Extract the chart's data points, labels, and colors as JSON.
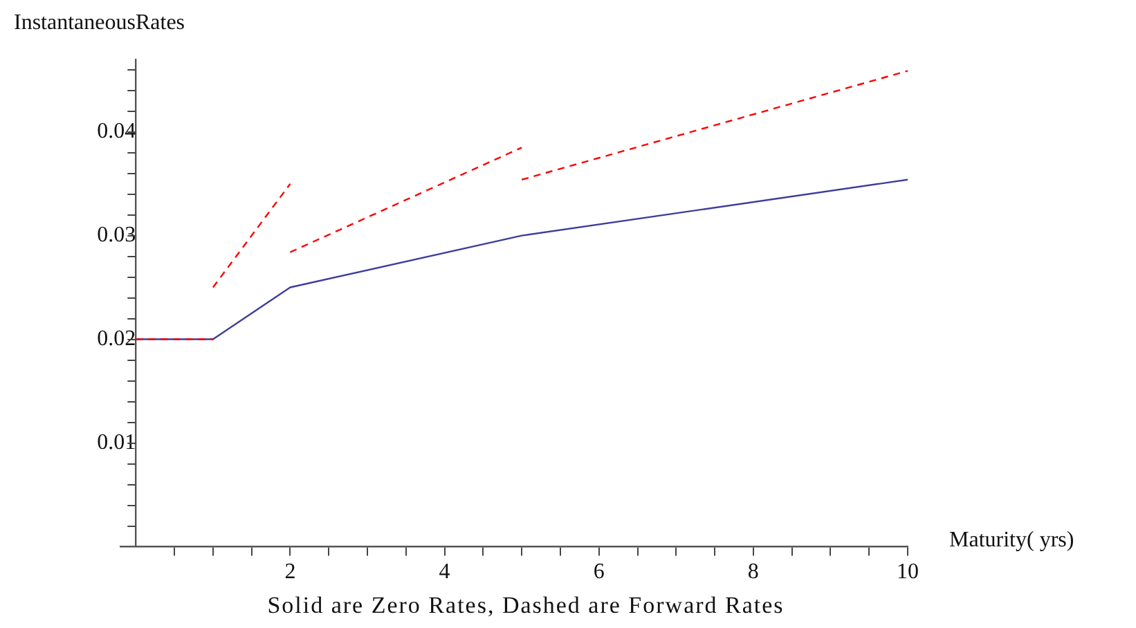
{
  "chart_data": {
    "type": "line",
    "ylabel": "InstantaneousRates",
    "xlabel": "Maturity( yrs)",
    "annotations": [
      "Solid are Zero Rates, Dashed are Forward Rates"
    ],
    "xlim": [
      -0.2,
      10
    ],
    "ylim": [
      0,
      0.047
    ],
    "xticks": [
      {
        "value": 0.5,
        "label": null
      },
      {
        "value": 1,
        "label": null
      },
      {
        "value": 1.5,
        "label": null
      },
      2,
      {
        "value": 2.5,
        "label": null
      },
      {
        "value": 3,
        "label": null
      },
      {
        "value": 3.5,
        "label": null
      },
      4,
      {
        "value": 4.5,
        "label": null
      },
      {
        "value": 5,
        "label": null
      },
      {
        "value": 5.5,
        "label": null
      },
      6,
      {
        "value": 6.5,
        "label": null
      },
      {
        "value": 7,
        "label": null
      },
      {
        "value": 7.5,
        "label": null
      },
      8,
      {
        "value": 8.5,
        "label": null
      },
      {
        "value": 9,
        "label": null
      },
      {
        "value": 9.5,
        "label": null
      },
      10
    ],
    "yticks": [
      {
        "value": 0.002,
        "label": null
      },
      {
        "value": 0.004,
        "label": null
      },
      {
        "value": 0.006,
        "label": null
      },
      {
        "value": 0.008,
        "label": null
      },
      0.01,
      {
        "value": 0.012,
        "label": null
      },
      {
        "value": 0.014,
        "label": null
      },
      {
        "value": 0.016,
        "label": null
      },
      {
        "value": 0.018,
        "label": null
      },
      0.02,
      {
        "value": 0.022,
        "label": null
      },
      {
        "value": 0.024,
        "label": null
      },
      {
        "value": 0.026,
        "label": null
      },
      {
        "value": 0.028,
        "label": null
      },
      0.03,
      {
        "value": 0.032,
        "label": null
      },
      {
        "value": 0.034,
        "label": null
      },
      {
        "value": 0.036,
        "label": null
      },
      {
        "value": 0.038,
        "label": null
      },
      0.04,
      {
        "value": 0.042,
        "label": null
      },
      {
        "value": 0.044,
        "label": null
      },
      {
        "value": 0.046,
        "label": null
      }
    ],
    "grid": false,
    "legend": false,
    "marker": "none",
    "series": [
      {
        "color": "#ff0000",
        "line_style": "dashed",
        "x": [
          0,
          1
        ],
        "values": [
          0.02,
          0.02
        ]
      },
      {
        "color": "#ff0000",
        "line_style": "dashed",
        "x": [
          1,
          2
        ],
        "values": [
          0.025,
          0.035
        ]
      },
      {
        "color": "#ff0000",
        "line_style": "dashed",
        "x": [
          2,
          5
        ],
        "values": [
          0.0284,
          0.0385
        ]
      },
      {
        "color": "#ff0000",
        "line_style": "dashed",
        "x": [
          5,
          10
        ],
        "values": [
          0.0354,
          0.0459
        ]
      },
      {
        "color": "#3d3d9e",
        "line_style": "solid",
        "x": [
          0,
          1,
          2,
          5,
          10
        ],
        "values": [
          0.02,
          0.02,
          0.025,
          0.03,
          0.0354
        ]
      }
    ]
  }
}
